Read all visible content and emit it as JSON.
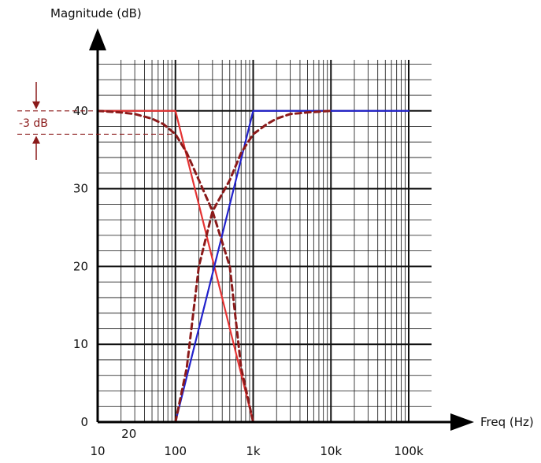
{
  "chart_data": {
    "type": "line",
    "x_scale": "log",
    "y_scale": "linear",
    "grid": true,
    "xlabel": "Freq (Hz)",
    "ylabel": "Magnitude (dB)",
    "xlim": [
      10,
      300000
    ],
    "ylim": [
      0,
      48
    ],
    "x_ticks": [
      10,
      20,
      100,
      1000,
      10000,
      100000
    ],
    "x_tick_labels": [
      "10",
      "20",
      "100",
      "1k",
      "10k",
      "100k"
    ],
    "y_ticks": [
      0,
      10,
      20,
      30,
      40
    ],
    "y_tick_labels": [
      "0",
      "10",
      "20",
      "30",
      "40"
    ],
    "annotation_label": "-3 dB",
    "series": [
      {
        "color": "#e53333",
        "style": "solid",
        "x": [
          10,
          100,
          1000
        ],
        "y": [
          40,
          40,
          0
        ]
      },
      {
        "color": "#2222cc",
        "style": "solid",
        "x": [
          100,
          1000,
          100000
        ],
        "y": [
          0,
          40,
          40
        ]
      },
      {
        "color": "#8b1a1a",
        "style": "dashed",
        "x": [
          10,
          20,
          30,
          50,
          70,
          100,
          140,
          200,
          300,
          500,
          700,
          1000
        ],
        "y": [
          40,
          39.8,
          39.6,
          39.0,
          38.3,
          37.0,
          34.6,
          31.1,
          27.1,
          20.0,
          7.0,
          0
        ]
      },
      {
        "color": "#8b1a1a",
        "style": "dashed",
        "x": [
          100,
          140,
          200,
          300,
          500,
          700,
          1000,
          1500,
          2000,
          3000,
          5000,
          10000
        ],
        "y": [
          0,
          7.0,
          20.0,
          27.1,
          31.1,
          34.6,
          37.0,
          38.3,
          39.0,
          39.6,
          39.8,
          40
        ]
      }
    ]
  }
}
